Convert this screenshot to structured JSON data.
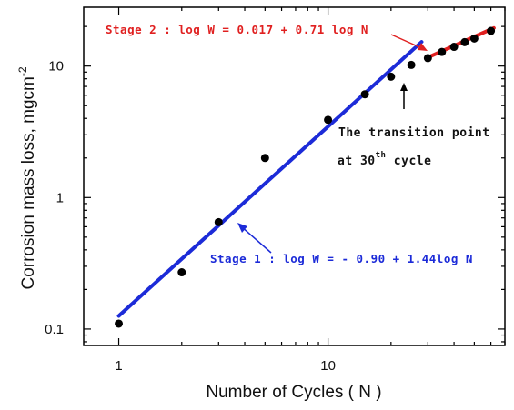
{
  "chart_data": {
    "type": "scatter",
    "title": "",
    "xlabel": "Number of Cycles ( N )",
    "ylabel": "Corrosion mass loss, mgcm",
    "ylabel_superscript": "-2",
    "xscale": "log",
    "yscale": "log",
    "xlim": [
      0.68,
      70
    ],
    "ylim": [
      0.075,
      28
    ],
    "x_ticks": [
      1,
      10
    ],
    "x_tick_labels": [
      "1",
      "10"
    ],
    "y_ticks": [
      0.1,
      1,
      10
    ],
    "y_tick_labels": [
      "0.1",
      "1",
      "10"
    ],
    "grid": false,
    "legend": "none",
    "points": [
      {
        "x": 1,
        "y": 0.11
      },
      {
        "x": 2,
        "y": 0.27
      },
      {
        "x": 3,
        "y": 0.65
      },
      {
        "x": 5,
        "y": 2.0
      },
      {
        "x": 10,
        "y": 3.9
      },
      {
        "x": 15,
        "y": 6.1
      },
      {
        "x": 20,
        "y": 8.3
      },
      {
        "x": 25,
        "y": 10.2
      },
      {
        "x": 30,
        "y": 11.5
      },
      {
        "x": 35,
        "y": 12.8
      },
      {
        "x": 40,
        "y": 14.0
      },
      {
        "x": 45,
        "y": 15.2
      },
      {
        "x": 50,
        "y": 16.2
      },
      {
        "x": 60,
        "y": 18.5
      }
    ],
    "fits": [
      {
        "intercept": -0.9,
        "slope": 1.44,
        "x_range": [
          1,
          28
        ],
        "color": "#1c2bd8"
      },
      {
        "intercept": 0.017,
        "slope": 0.71,
        "x_range": [
          30,
          62
        ],
        "color": "#e02020"
      }
    ],
    "annotations": {
      "stage1": "Stage 1 : log  W = - 0.90 + 1.44log  N",
      "stage2": "Stage 2 : log  W = 0.017 + 0.71 log  N",
      "transition_line1": "The transition point",
      "transition_line2_pre": "at 30",
      "transition_line2_sup": "th",
      "transition_line2_post": " cycle"
    }
  }
}
